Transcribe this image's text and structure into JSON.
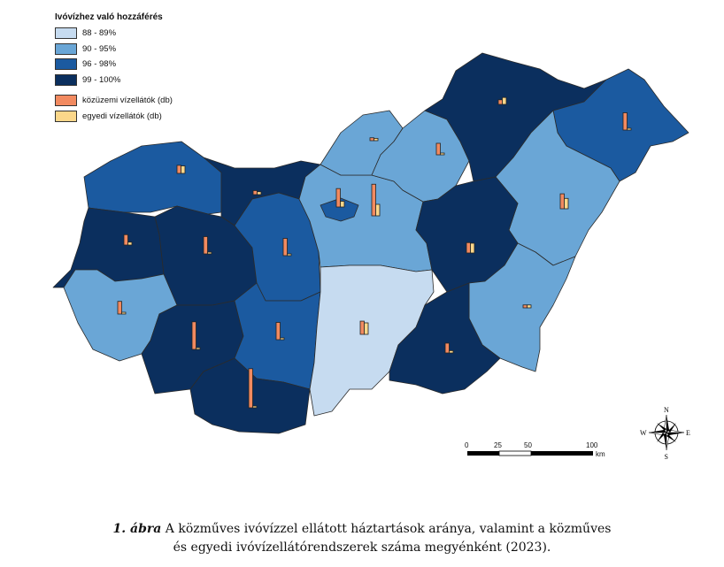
{
  "legend": {
    "title": "Ivóvízhez való hozzáférés",
    "classes": [
      {
        "label": "88 - 89%",
        "color": "#c6dbf0"
      },
      {
        "label": "90 - 95%",
        "color": "#6aa6d6"
      },
      {
        "label": "96 - 98%",
        "color": "#1b5aa0"
      },
      {
        "label": "99 - 100%",
        "color": "#0b2f5e"
      }
    ],
    "bars": [
      {
        "label": "közüzemi vízellátók (db)",
        "color": "#f28a60"
      },
      {
        "label": "egyedi vízellátók (db)",
        "color": "#fbd78a"
      }
    ]
  },
  "scalebar": {
    "ticks": [
      "0",
      "25",
      "50",
      "100"
    ],
    "unit": "km"
  },
  "compass": {
    "n": "N",
    "e": "E",
    "s": "S",
    "w": "W"
  },
  "caption": {
    "label": "1. ábra",
    "line1": "A közműves ivóvízzel ellátott háztartások aránya, valamint a közműves",
    "line2": "és egyedi ivóvízellátórendszerek száma megyénként (2023)."
  },
  "regions": [
    {
      "name": "gyor",
      "class": 2,
      "pub": 0.14,
      "ind": 0.13
    },
    {
      "name": "komarom",
      "class": 3,
      "pub": 0.07,
      "ind": 0.05
    },
    {
      "name": "vas",
      "class": 3,
      "pub": 0.18,
      "ind": 0.05
    },
    {
      "name": "veszprem",
      "class": 3,
      "pub": 0.3,
      "ind": 0.02
    },
    {
      "name": "fejer",
      "class": 2,
      "pub": 0.3,
      "ind": 0.02
    },
    {
      "name": "zala",
      "class": 1,
      "pub": 0.22,
      "ind": 0.02
    },
    {
      "name": "somogy",
      "class": 3,
      "pub": 0.48,
      "ind": 0.03
    },
    {
      "name": "tolna",
      "class": 2,
      "pub": 0.3,
      "ind": 0.03
    },
    {
      "name": "baranya",
      "class": 3,
      "pub": 0.68,
      "ind": 0.03
    },
    {
      "name": "pest",
      "class": 1,
      "pub": 0.55,
      "ind": 0.2
    },
    {
      "name": "budapest",
      "class": 2,
      "pub": 0.32,
      "ind": 0.1
    },
    {
      "name": "nograd",
      "class": 1,
      "pub": 0.05,
      "ind": 0.04
    },
    {
      "name": "heves",
      "class": 1,
      "pub": 0.2,
      "ind": 0.03
    },
    {
      "name": "borsod",
      "class": 3,
      "pub": 0.08,
      "ind": 0.12
    },
    {
      "name": "szabolcs",
      "class": 2,
      "pub": 0.3,
      "ind": 0.03
    },
    {
      "name": "hajdu",
      "class": 1,
      "pub": 0.26,
      "ind": 0.18
    },
    {
      "name": "szolnok",
      "class": 3,
      "pub": 0.18,
      "ind": 0.17
    },
    {
      "name": "bekes",
      "class": 1,
      "pub": 0.05,
      "ind": 0.05
    },
    {
      "name": "bacs",
      "class": 0,
      "pub": 0.23,
      "ind": 0.2
    },
    {
      "name": "csongrad",
      "class": 3,
      "pub": 0.17,
      "ind": 0.04
    }
  ]
}
